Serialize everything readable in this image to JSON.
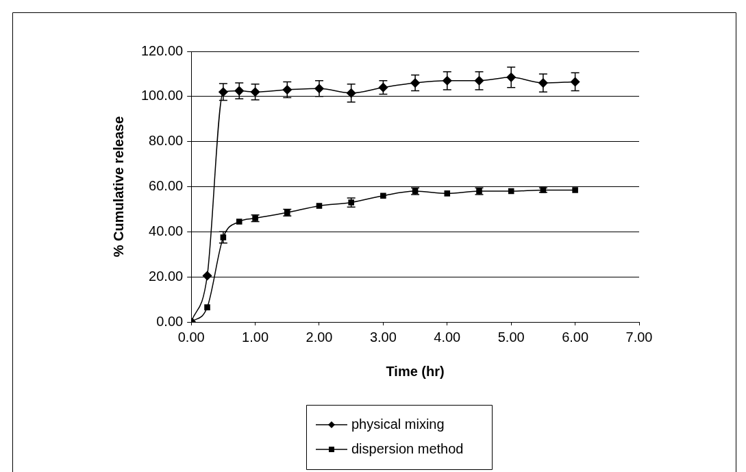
{
  "chart_data": {
    "type": "line",
    "xlabel": "Time (hr)",
    "ylabel": "% Cumulative release",
    "xlim": [
      0,
      7
    ],
    "xticks": [
      {
        "value": 0,
        "label": "0.00"
      },
      {
        "value": 1,
        "label": "1.00"
      },
      {
        "value": 2,
        "label": "2.00"
      },
      {
        "value": 3,
        "label": "3.00"
      },
      {
        "value": 4,
        "label": "4.00"
      },
      {
        "value": 5,
        "label": "5.00"
      },
      {
        "value": 6,
        "label": "6.00"
      },
      {
        "value": 7,
        "label": "7.00"
      }
    ],
    "ylim": [
      0,
      120
    ],
    "yticks": [
      {
        "value": 0,
        "label": "0.00"
      },
      {
        "value": 20,
        "label": "20.00"
      },
      {
        "value": 40,
        "label": "40.00"
      },
      {
        "value": 60,
        "label": "60.00"
      },
      {
        "value": 80,
        "label": "80.00"
      },
      {
        "value": 100,
        "label": "100.00"
      },
      {
        "value": 120,
        "label": "120.00"
      }
    ],
    "x": [
      0,
      0.25,
      0.5,
      0.75,
      1,
      1.5,
      2,
      2.5,
      3,
      3.5,
      4,
      4.5,
      5,
      5.5,
      6
    ],
    "grid": "y",
    "legend": "bottom",
    "line_style": "solid",
    "series": [
      {
        "name": "physical mixing",
        "color": "#000000",
        "marker": "diamond",
        "values": [
          0,
          20.5,
          102,
          102.5,
          102,
          103,
          103.5,
          101.5,
          104,
          106,
          107,
          107,
          108.5,
          106,
          106.5
        ],
        "errors": [
          null,
          null,
          3.7,
          3.5,
          3.5,
          3.5,
          3.5,
          4,
          3,
          3.5,
          4,
          4,
          4.5,
          4,
          4
        ]
      },
      {
        "name": "dispersion method",
        "color": "#000000",
        "marker": "square",
        "values": [
          0,
          6.5,
          37.5,
          44.5,
          46,
          48.5,
          51.5,
          53,
          56,
          58,
          57,
          58,
          58,
          58.5,
          58.5
        ],
        "errors": [
          null,
          null,
          2.5,
          null,
          1.5,
          1.5,
          null,
          2,
          null,
          1.5,
          null,
          1.5,
          null,
          1,
          null
        ]
      }
    ]
  }
}
